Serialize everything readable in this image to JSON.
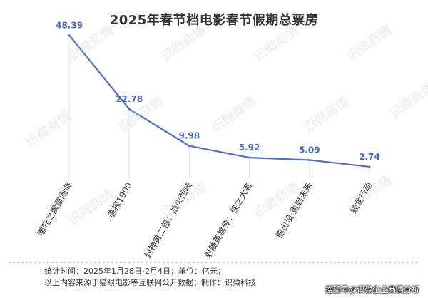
{
  "chart_data": {
    "type": "line",
    "title": "2025年春节档电影春节假期总票房",
    "categories": [
      "哪吒之魔童闹海",
      "唐探1900",
      "封神第二部：战火西岐",
      "射雕英雄传：侠之大者",
      "熊出没·重启未来",
      "蛟龙行动"
    ],
    "values": [
      48.39,
      22.78,
      9.98,
      5.92,
      5.09,
      2.74
    ],
    "value_labels": [
      "48.39",
      "22.78",
      "9.98",
      "5.92",
      "5.09",
      "2.74"
    ],
    "ylim": [
      0,
      52
    ],
    "grid": false,
    "legend": "none",
    "line_color": "#4f6fc4"
  },
  "notes": {
    "line1": "统计时间：2025年1月28日-2月4日；单位：亿元；",
    "line2": "以上内容来源于猫眼电影等互联网公开数据；制作：识微科技"
  },
  "credit": "搜狐号@识微企业商情分析",
  "watermark": "识微商情"
}
